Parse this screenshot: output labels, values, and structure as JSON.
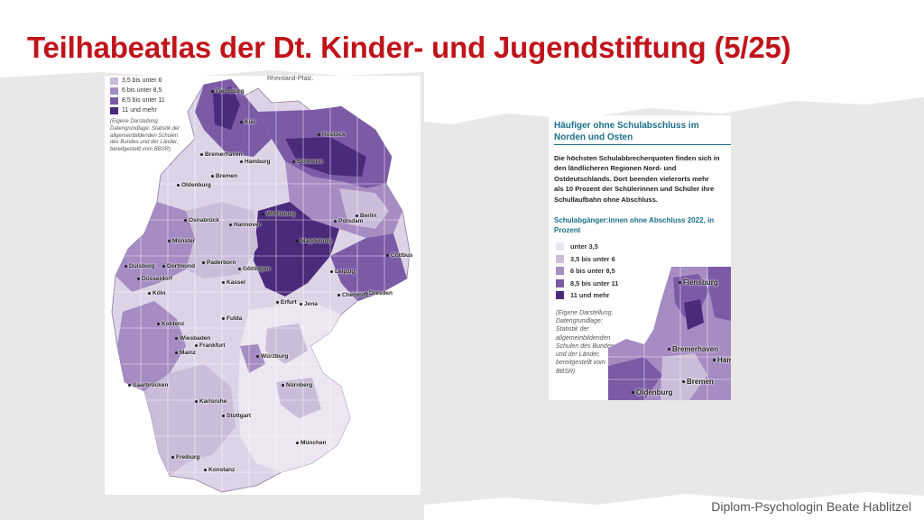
{
  "slide": {
    "title": "Teilhabeatlas der Dt. Kinder- und Jugendstiftung (5/25)",
    "author": "Diplom-Psychologin Beate Hablitzel"
  },
  "map": {
    "header_note": "Rheinland-Pfalz.",
    "legend": [
      {
        "label": "3,5 bis unter 6",
        "color": "#cbbcd9"
      },
      {
        "label": "6 bis unter 8,5",
        "color": "#a58cc2"
      },
      {
        "label": "8,5 bis unter 11",
        "color": "#7b5aa6"
      },
      {
        "label": "11 und mehr",
        "color": "#4a2a7a"
      }
    ],
    "note": "(Eigene Darstellung. Datengrundlage: Statistik der allgemeinbildenden Schulen des Bundes und der Länder, bereitgestellt vom BBSR)",
    "cities": [
      "Flensburg",
      "Kiel",
      "Rostock",
      "Bremerhaven",
      "Hamburg",
      "Schwerin",
      "Oldenburg",
      "Bremen",
      "Berlin",
      "Potsdam",
      "Wolfsburg",
      "Osnabrück",
      "Hannover",
      "Magdeburg",
      "Münster",
      "Paderborn",
      "Cottbus",
      "Duisburg",
      "Dortmund",
      "Göttingen",
      "Leipzig",
      "Düsseldorf",
      "Kassel",
      "Dresden",
      "Köln",
      "Chemnitz",
      "Erfurt",
      "Jena",
      "Koblenz",
      "Fulda",
      "Wiesbaden",
      "Frankfurt",
      "Mainz",
      "Würzburg",
      "Saarbrücken",
      "Nürnberg",
      "Karlsruhe",
      "Stuttgart",
      "München",
      "Freiburg",
      "Konstanz"
    ]
  },
  "info": {
    "title": "Häufiger ohne Schulabschluss im Norden und Osten",
    "body": "Die höchsten Schulabbrecherquoten finden sich in den ländlicheren Regionen Nord- und Ostdeutschlands. Dort beenden vielerorts mehr als 10 Prozent der Schülerinnen und Schüler ihre Schullaufbahn ohne Abschluss.",
    "subtitle": "Schulabgänger:innen ohne Abschluss 2022, in Prozent",
    "legend": [
      {
        "label": "unter 3,5",
        "color": "#ece6f2"
      },
      {
        "label": "3,5 bis unter 6",
        "color": "#cbbcd9"
      },
      {
        "label": "6 bis unter 8,5",
        "color": "#a58cc2"
      },
      {
        "label": "8,5 bis unter 11",
        "color": "#7b5aa6"
      },
      {
        "label": "11 und mehr",
        "color": "#4a2a7a"
      }
    ],
    "note": "(Eigene Darstellung. Datengrundlage: Statistik der allgemeinbildenden Schulen des Bundes und der Länder, bereitgestellt vom BBSR)",
    "inset_cities": [
      "Flensburg",
      "Bremerhaven",
      "Hamb",
      "Bremen",
      "Oldenburg"
    ]
  }
}
